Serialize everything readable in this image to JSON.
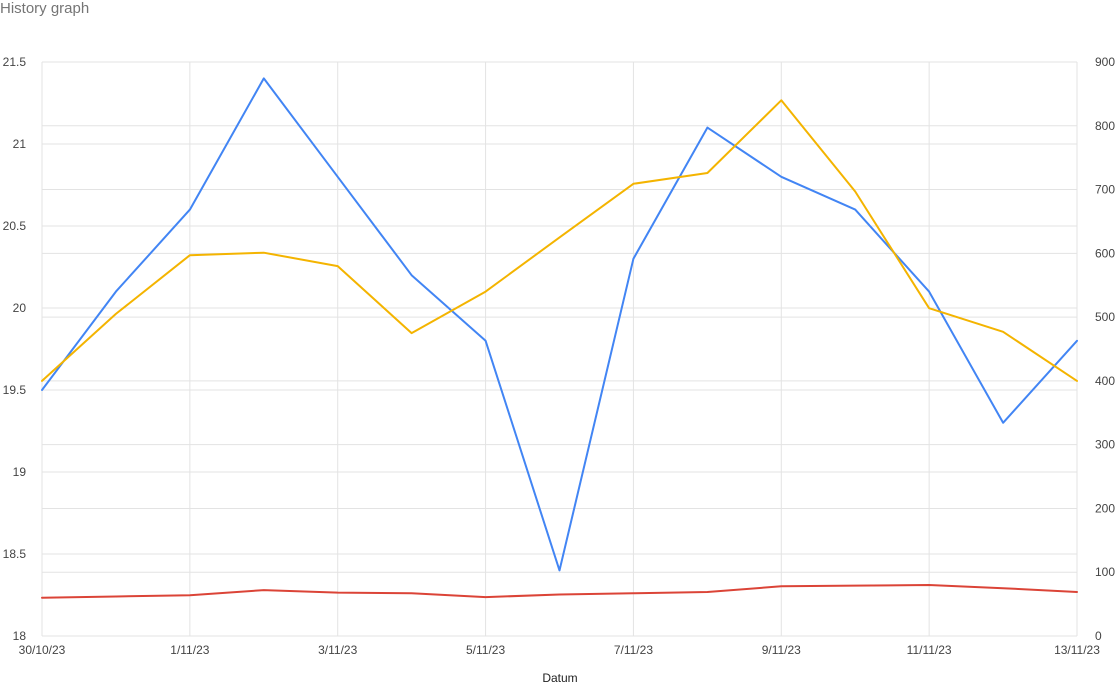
{
  "chart_data": {
    "type": "line",
    "title": "History graph",
    "xlabel": "Datum",
    "x": [
      "30/10/23",
      "31/10/23",
      "1/11/23",
      "2/11/23",
      "3/11/23",
      "4/11/23",
      "5/11/23",
      "6/11/23",
      "7/11/23",
      "8/11/23",
      "9/11/23",
      "10/11/23",
      "11/11/23",
      "12/11/23",
      "13/11/23"
    ],
    "x_tick_labels": [
      "30/10/23",
      "1/11/23",
      "3/11/23",
      "5/11/23",
      "7/11/23",
      "9/11/23",
      "11/11/23",
      "13/11/23"
    ],
    "left_axis": {
      "ylim": [
        18,
        21.5
      ],
      "ticks": [
        "18",
        "18.5",
        "19",
        "19.5",
        "20",
        "20.5",
        "21",
        "21.5"
      ]
    },
    "right_axis": {
      "ylim": [
        0,
        900
      ],
      "ticks": [
        "0",
        "100",
        "200",
        "300",
        "400",
        "500",
        "600",
        "700",
        "800",
        "900"
      ]
    },
    "grid": true,
    "series": [
      {
        "color": "#4285f4",
        "axis": "left",
        "values": [
          19.5,
          20.1,
          20.6,
          21.4,
          20.8,
          20.2,
          19.8,
          18.4,
          20.3,
          21.1,
          20.8,
          20.6,
          20.1,
          19.3,
          19.8
        ]
      },
      {
        "color": "#f4b400",
        "axis": "right",
        "values": [
          400,
          505,
          597,
          601,
          580,
          475,
          540,
          625,
          709,
          726,
          840,
          697,
          514,
          477,
          400
        ]
      },
      {
        "color": "#db4437",
        "axis": "right",
        "values": [
          60,
          62,
          64,
          72,
          68,
          67,
          61,
          65,
          67,
          69,
          78,
          79,
          80,
          75,
          69
        ]
      }
    ]
  }
}
